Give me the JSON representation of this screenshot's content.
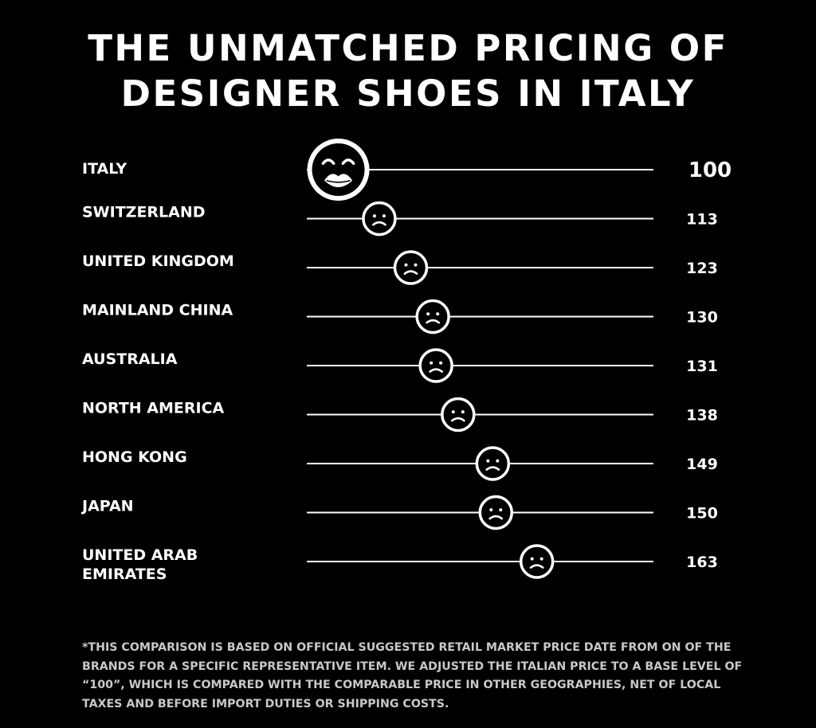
{
  "title": {
    "line1": "THE UNMATCHED PRICING OF",
    "line2": "DESIGNER SHOES IN ITALY"
  },
  "chart_data": {
    "type": "scatter",
    "categories": [
      "ITALY",
      "SWITZERLAND",
      "UNITED KINGDOM",
      "MAINLAND  CHINA",
      "AUSTRALIA",
      "NORTH AMERICA",
      "HONG KONG",
      "JAPAN",
      "UNITED ARAB EMIRATES"
    ],
    "category_lines": [
      [
        "ITALY"
      ],
      [
        "SWITZERLAND"
      ],
      [
        "UNITED KINGDOM"
      ],
      [
        "MAINLAND  CHINA"
      ],
      [
        "AUSTRALIA"
      ],
      [
        "NORTH AMERICA"
      ],
      [
        "HONG KONG"
      ],
      [
        "JAPAN"
      ],
      [
        "UNITED ARAB",
        "EMIRATES"
      ]
    ],
    "values": [
      100,
      113,
      123,
      130,
      131,
      138,
      149,
      150,
      163
    ],
    "value_labels": [
      "100",
      "113",
      "123",
      "130",
      "131",
      "138",
      "149",
      "150",
      "163"
    ],
    "markers": [
      "kiss-face-icon",
      "sad-face-icon",
      "sad-face-icon",
      "sad-face-icon",
      "sad-face-icon",
      "sad-face-icon",
      "sad-face-icon",
      "sad-face-icon",
      "sad-face-icon"
    ],
    "xlim": [
      90,
      200
    ],
    "grid": false,
    "legend": "none"
  },
  "footnote": "*THIS COMPARISON IS BASED ON OFFICIAL SUGGESTED RETAIL MARKET PRICE DATE FROM ON OF THE BRANDS FOR A SPECIFIC REPRESENTATIVE ITEM. WE ADJUSTED THE ITALIAN PRICE TO A BASE  LEVEL OF “100”, WHICH IS COMPARED WITH THE COMPARABLE PRICE IN OTHER GEOGRAPHIES, NET OF LOCAL TAXES AND BEFORE IMPORT DUTIES OR SHIPPING COSTS.",
  "colors": {
    "background": "#000000",
    "foreground": "#ffffff",
    "footnote": "#c8c8c8"
  }
}
